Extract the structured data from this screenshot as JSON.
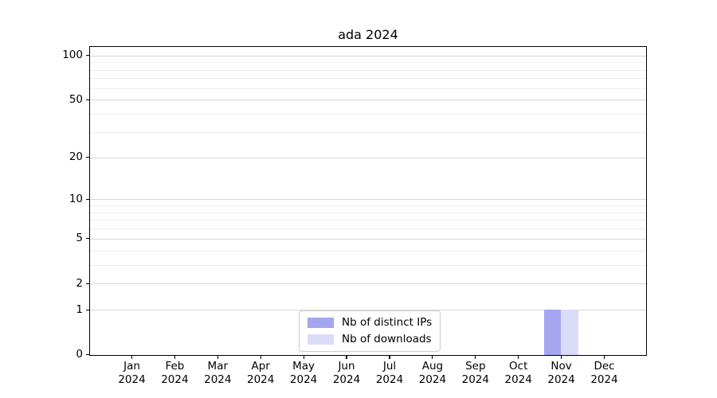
{
  "chart_data": {
    "type": "bar",
    "title": "ada 2024",
    "scale": "log1p",
    "grid": true,
    "categories": [
      "Jan",
      "Feb",
      "Mar",
      "Apr",
      "May",
      "Jun",
      "Jul",
      "Aug",
      "Sep",
      "Oct",
      "Nov",
      "Dec"
    ],
    "category_year": "2024",
    "series": [
      {
        "name": "Nb of distinct IPs",
        "color": "#a5a5f0",
        "values": [
          0,
          0,
          0,
          0,
          0,
          0,
          0,
          0,
          0,
          0,
          1,
          0
        ]
      },
      {
        "name": "Nb of downloads",
        "color": "#dbdbfa",
        "values": [
          0,
          0,
          0,
          0,
          0,
          0,
          0,
          0,
          0,
          0,
          1,
          0
        ]
      }
    ],
    "yticks": [
      100,
      50,
      20,
      10,
      5,
      2,
      1,
      0
    ],
    "yticks_minor": [
      3,
      4,
      6,
      7,
      8,
      9,
      30,
      40,
      60,
      70,
      80,
      90
    ],
    "ylim": [
      0,
      114
    ],
    "xlim": [
      -0.97,
      11.97
    ],
    "bar_width_fraction": 0.4,
    "legend_position": "lower center",
    "colors": {
      "axis": "#000000",
      "grid_major": "#d6d6d6",
      "grid_minor": "#ededed",
      "legend_border": "#cccccc"
    }
  }
}
